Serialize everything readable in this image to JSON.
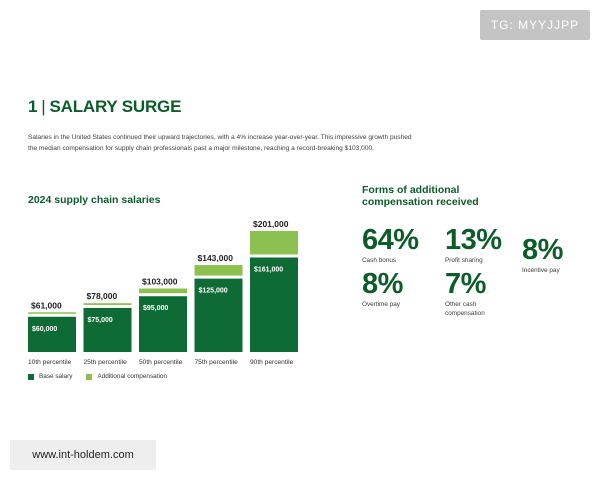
{
  "badge": "TG: MYYJJPP",
  "heading": {
    "number": "1",
    "separator": "|",
    "title": "SALARY SURGE"
  },
  "intro": {
    "line1": "Salaries in the United States continued their upward trajectories, with a 4% increase year-over-year. This impressive growth pushed",
    "line2": "the median compensation for supply chain professionals past a major milestone, reaching a record-breaking $103,000."
  },
  "chart_title": "2024 supply chain salaries",
  "legend": {
    "base": "Base salary",
    "additional": "Additional compensation"
  },
  "colors": {
    "base": "#0f6b35",
    "additional": "#8cc152",
    "text_dark": "#0c5c2a"
  },
  "chart_data": {
    "type": "bar",
    "stacked": true,
    "title": "2024 supply chain salaries",
    "categories": [
      "10th percentile",
      "25th percentile",
      "50th percentile",
      "75th percentile",
      "90th percentile"
    ],
    "series": [
      {
        "name": "Base salary",
        "values": [
          60000,
          75000,
          95000,
          125000,
          161000
        ],
        "labels": [
          "$60,000",
          "$75,000",
          "$95,000",
          "$125,000",
          "$161,000"
        ]
      },
      {
        "name": "Additional compensation",
        "values": [
          1000,
          3000,
          8000,
          18000,
          40000
        ]
      }
    ],
    "totals": [
      61000,
      78000,
      103000,
      143000,
      201000
    ],
    "total_labels": [
      "$61,000",
      "$78,000",
      "$103,000",
      "$143,000",
      "$201,000"
    ],
    "ylim": [
      0,
      201000
    ],
    "xlabel": "",
    "ylabel": ""
  },
  "forms_title": "Forms of additional compensation received",
  "forms": [
    {
      "value": "64%",
      "label": "Cash bonus"
    },
    {
      "value": "13%",
      "label": "Profit sharing"
    },
    {
      "value": "8%",
      "label": "Incentive pay"
    },
    {
      "value": "8%",
      "label": "Overtime pay"
    },
    {
      "value": "7%",
      "label": "Other cash compensation"
    }
  ],
  "watermark": "www.int-holdem.com"
}
